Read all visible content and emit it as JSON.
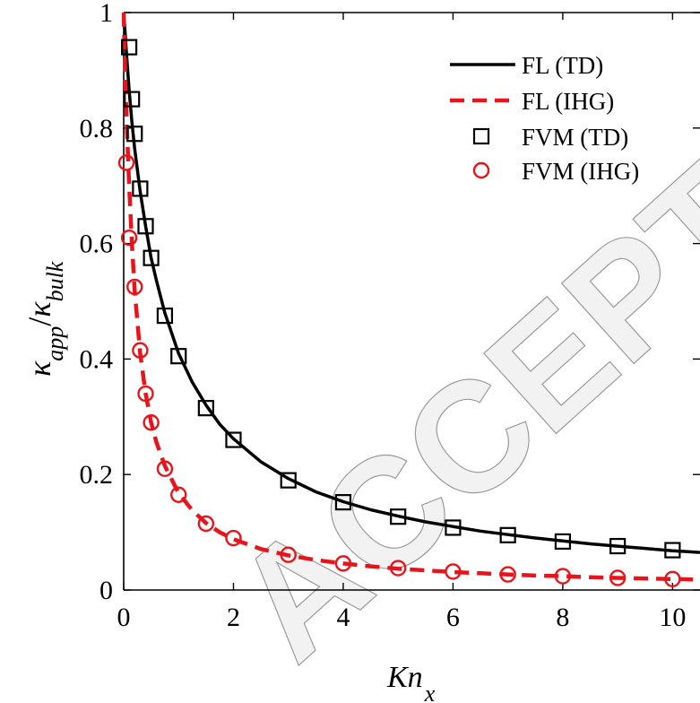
{
  "watermark": "ACCEPTED MANUSCRIPT",
  "chart_data": {
    "type": "line",
    "xlabel": "Kn",
    "xlabel_sub": "x",
    "ylabel_main1": "κ",
    "ylabel_sub1": "app",
    "ylabel_slash": "/",
    "ylabel_main2": "κ",
    "ylabel_sub2": "bulk",
    "xlim": [
      0,
      10.5
    ],
    "ylim": [
      0,
      1
    ],
    "xticks": [
      "0",
      "2",
      "4",
      "6",
      "8",
      "10"
    ],
    "yticks": [
      "0",
      "0.2",
      "0.4",
      "0.6",
      "0.8",
      "1"
    ],
    "grid": false,
    "legend_position": "top-right",
    "series": [
      {
        "name": "FL (TD)",
        "kind": "line",
        "style": "solid",
        "color": "#000000",
        "x": [
          0.0,
          0.02,
          0.05,
          0.1,
          0.15,
          0.2,
          0.3,
          0.4,
          0.5,
          0.6,
          0.75,
          1.0,
          1.25,
          1.5,
          1.75,
          2.0,
          2.5,
          3.0,
          3.5,
          4.0,
          4.5,
          5.0,
          5.5,
          6.0,
          6.5,
          7.0,
          7.5,
          8.0,
          8.5,
          9.0,
          9.5,
          10.0,
          10.5
        ],
        "y": [
          1.0,
          0.975,
          0.93,
          0.865,
          0.81,
          0.765,
          0.69,
          0.63,
          0.575,
          0.535,
          0.48,
          0.41,
          0.36,
          0.32,
          0.287,
          0.262,
          0.222,
          0.193,
          0.17,
          0.153,
          0.139,
          0.128,
          0.118,
          0.11,
          0.102,
          0.096,
          0.09,
          0.085,
          0.08,
          0.076,
          0.072,
          0.068,
          0.065
        ]
      },
      {
        "name": "FL (IHG)",
        "kind": "line",
        "style": "dashed",
        "color": "#e8141b",
        "x": [
          0.0,
          0.02,
          0.05,
          0.1,
          0.15,
          0.2,
          0.3,
          0.4,
          0.5,
          0.6,
          0.75,
          1.0,
          1.25,
          1.5,
          1.75,
          2.0,
          2.5,
          3.0,
          3.5,
          4.0,
          4.5,
          5.0,
          5.5,
          6.0,
          6.5,
          7.0,
          7.5,
          8.0,
          8.5,
          9.0,
          9.5,
          10.0,
          10.5
        ],
        "y": [
          1.0,
          0.92,
          0.82,
          0.7,
          0.6,
          0.52,
          0.41,
          0.34,
          0.29,
          0.255,
          0.215,
          0.168,
          0.138,
          0.116,
          0.1,
          0.088,
          0.071,
          0.06,
          0.052,
          0.046,
          0.041,
          0.037,
          0.034,
          0.031,
          0.029,
          0.027,
          0.025,
          0.024,
          0.022,
          0.021,
          0.02,
          0.019,
          0.018
        ]
      },
      {
        "name": "FVM (TD)",
        "kind": "markers",
        "marker": "square",
        "color": "#000000",
        "x": [
          0.1,
          0.15,
          0.2,
          0.3,
          0.4,
          0.5,
          0.75,
          1.0,
          1.5,
          2.0,
          3.0,
          4.0,
          5.0,
          6.0,
          7.0,
          8.0,
          9.0,
          10.0
        ],
        "y": [
          0.94,
          0.85,
          0.79,
          0.695,
          0.63,
          0.575,
          0.475,
          0.405,
          0.315,
          0.26,
          0.19,
          0.152,
          0.127,
          0.108,
          0.095,
          0.084,
          0.076,
          0.069
        ]
      },
      {
        "name": "FVM (IHG)",
        "kind": "markers",
        "marker": "circle",
        "color": "#e8141b",
        "x": [
          0.05,
          0.1,
          0.2,
          0.3,
          0.4,
          0.5,
          0.75,
          1.0,
          1.5,
          2.0,
          3.0,
          4.0,
          5.0,
          6.0,
          7.0,
          8.0,
          9.0,
          10.0
        ],
        "y": [
          0.74,
          0.61,
          0.525,
          0.415,
          0.34,
          0.29,
          0.21,
          0.165,
          0.115,
          0.09,
          0.061,
          0.046,
          0.038,
          0.032,
          0.027,
          0.024,
          0.021,
          0.019
        ]
      }
    ]
  }
}
